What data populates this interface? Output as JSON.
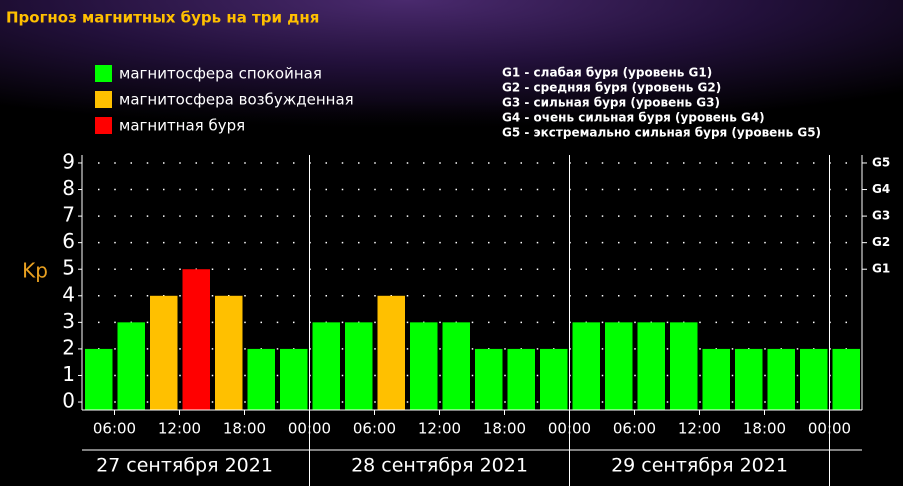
{
  "chart_data": {
    "type": "bar",
    "title": "Прогноз магнитных бурь на три дня",
    "ylabel": "Kp",
    "legend": [
      {
        "label": "магнитосфера спокойная",
        "color": "#00ff00"
      },
      {
        "label": "магнитосфера возбужденная",
        "color": "#ffc000"
      },
      {
        "label": "магнитная буря",
        "color": "#ff0000"
      }
    ],
    "g_legend": [
      "G1 - слабая буря (уровень G1)",
      "G2 - средняя буря (уровень G2)",
      "G3 - сильная буря (уровень G3)",
      "G4 - очень сильная буря (уровень G4)",
      "G5 - экстремально сильная буря (уровень G5)"
    ],
    "x": [
      3,
      6,
      9,
      12,
      15,
      18,
      21,
      24,
      27,
      30,
      33,
      36,
      39,
      42,
      45,
      48,
      51,
      54,
      57,
      60,
      63,
      66,
      69,
      72
    ],
    "values": [
      2,
      3,
      4,
      5,
      4,
      2,
      2,
      3,
      3,
      4,
      3,
      3,
      2,
      2,
      2,
      3,
      3,
      3,
      3,
      2,
      2,
      2,
      2,
      2
    ],
    "colors": [
      "#00ff00",
      "#00ff00",
      "#ffc000",
      "#ff0000",
      "#ffc000",
      "#00ff00",
      "#00ff00",
      "#00ff00",
      "#00ff00",
      "#ffc000",
      "#00ff00",
      "#00ff00",
      "#00ff00",
      "#00ff00",
      "#00ff00",
      "#00ff00",
      "#00ff00",
      "#00ff00",
      "#00ff00",
      "#00ff00",
      "#00ff00",
      "#00ff00",
      "#00ff00",
      "#00ff00"
    ],
    "xlim": [
      3,
      75
    ],
    "xticks": [
      {
        "value": 6,
        "label": "06:00"
      },
      {
        "value": 12,
        "label": "12:00"
      },
      {
        "value": 18,
        "label": "18:00"
      },
      {
        "value": 24,
        "label": "00:00"
      },
      {
        "value": 30,
        "label": "06:00"
      },
      {
        "value": 36,
        "label": "12:00"
      },
      {
        "value": 42,
        "label": "18:00"
      },
      {
        "value": 48,
        "label": "00:00"
      },
      {
        "value": 54,
        "label": "06:00"
      },
      {
        "value": 60,
        "label": "12:00"
      },
      {
        "value": 66,
        "label": "18:00"
      },
      {
        "value": 72,
        "label": "00:00"
      }
    ],
    "day_labels": [
      "27 сентября 2021",
      "28 сентября 2021",
      "29 сентября 2021"
    ],
    "ylim": [
      -0.3,
      9.3
    ],
    "yticks": [
      0,
      1,
      2,
      3,
      4,
      5,
      6,
      7,
      8,
      9
    ],
    "y2lim": [
      -0.3,
      9.3
    ],
    "y2ticks": [
      {
        "value": 5,
        "label": "G1"
      },
      {
        "value": 6,
        "label": "G2"
      },
      {
        "value": 7,
        "label": "G3"
      },
      {
        "value": 8,
        "label": "G4"
      },
      {
        "value": 9,
        "label": "G5"
      }
    ],
    "grid": true
  }
}
